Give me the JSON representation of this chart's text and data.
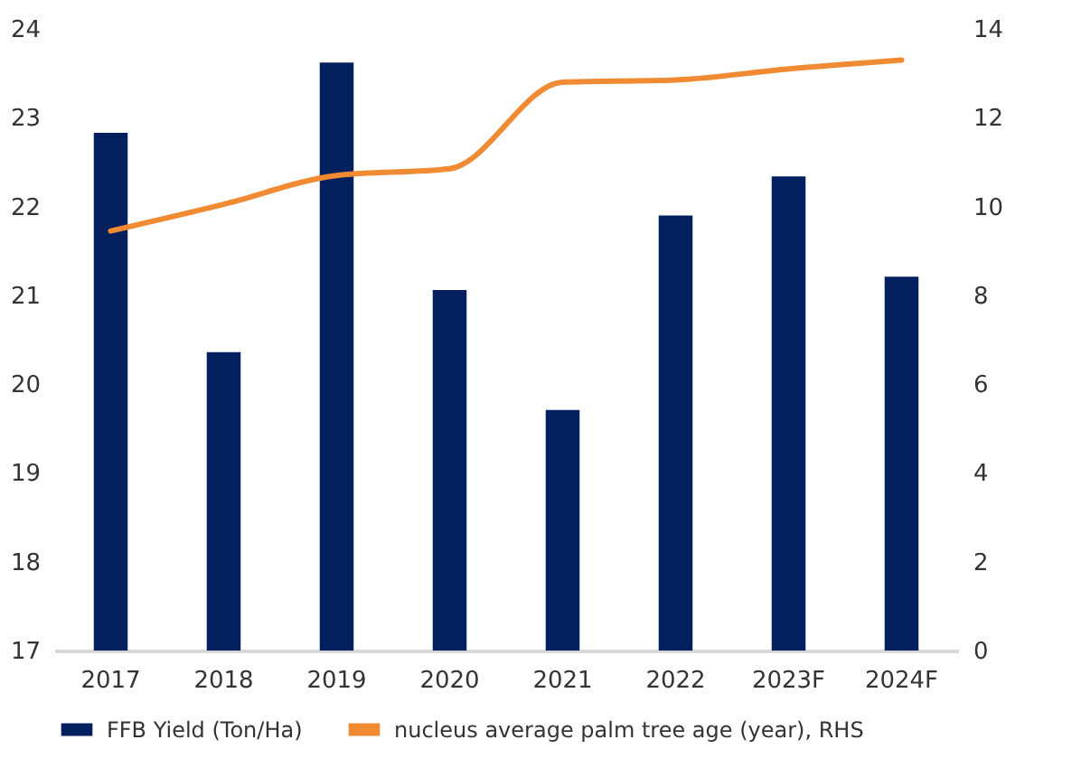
{
  "chart_data": {
    "type": "bar",
    "categories": [
      "2017",
      "2018",
      "2019",
      "2020",
      "2021",
      "2022",
      "2023F",
      "2024F"
    ],
    "series": [
      {
        "name": "FFB Yield (Ton/Ha)",
        "color": "#021f5e",
        "values": [
          22.83,
          20.36,
          23.62,
          21.06,
          19.71,
          21.9,
          22.34,
          21.21
        ]
      },
      {
        "name": "nucleus average palm tree age (year), RHS",
        "type": "line",
        "axis": "y2",
        "color": "#f08a33",
        "values": [
          9.45,
          10.05,
          10.7,
          10.85,
          12.8,
          12.85,
          13.1,
          13.3
        ]
      }
    ],
    "ylim": [
      17,
      24
    ],
    "yticks": [
      17,
      18,
      19,
      20,
      21,
      22,
      23,
      24
    ],
    "y2lim": [
      0,
      14
    ],
    "y2ticks": [
      0,
      2,
      4,
      6,
      8,
      10,
      12,
      14
    ],
    "legend": "bottom",
    "grid": false
  }
}
